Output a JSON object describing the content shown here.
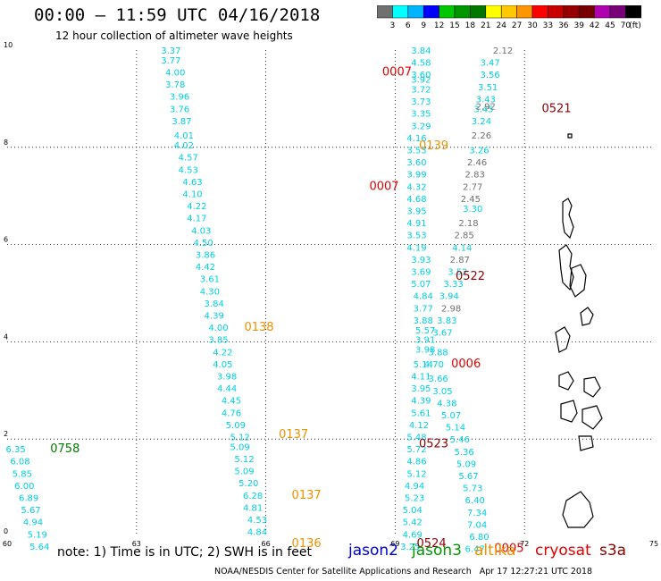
{
  "header": {
    "title": "00:00 – 11:59 UTC 04/16/2018",
    "subtitle": "12 hour collection of altimeter wave heights"
  },
  "colorbar": {
    "colors": [
      "#707070",
      "#00ffff",
      "#00b4ff",
      "#0000ff",
      "#00c800",
      "#009600",
      "#007800",
      "#ffff00",
      "#ffc800",
      "#ff9600",
      "#ff0000",
      "#c80000",
      "#960000",
      "#780000",
      "#b000b0",
      "#780078",
      "#000000"
    ],
    "labels": [
      "3",
      "6",
      "9",
      "12",
      "15",
      "18",
      "21",
      "24",
      "27",
      "30",
      "33",
      "36",
      "39",
      "42",
      "45",
      "70"
    ],
    "unit": "(ft)"
  },
  "chart_data": {
    "type": "scatter",
    "xlim": [
      60,
      75
    ],
    "ylim": [
      0,
      10
    ],
    "xticks": [
      "60",
      "63",
      "66",
      "69",
      "72",
      "75"
    ],
    "yticks": [
      "0",
      "2",
      "4",
      "6",
      "8",
      "10"
    ],
    "grid": true,
    "series": [
      {
        "color": "#00d0e0",
        "points": [
          {
            "x": 63.8,
            "y": 10.0,
            "v": "3.37"
          },
          {
            "x": 63.8,
            "y": 9.8,
            "v": "3.77"
          },
          {
            "x": 63.9,
            "y": 9.55,
            "v": "4.00"
          },
          {
            "x": 63.9,
            "y": 9.3,
            "v": "3.78"
          },
          {
            "x": 64.0,
            "y": 9.05,
            "v": "3.96"
          },
          {
            "x": 64.0,
            "y": 8.8,
            "v": "3.76"
          },
          {
            "x": 64.05,
            "y": 8.55,
            "v": "3.87"
          },
          {
            "x": 64.1,
            "y": 8.25,
            "v": "4.01"
          },
          {
            "x": 64.1,
            "y": 8.05,
            "v": "4.02"
          },
          {
            "x": 64.2,
            "y": 7.8,
            "v": "4.57"
          },
          {
            "x": 64.2,
            "y": 7.55,
            "v": "4.53"
          },
          {
            "x": 64.3,
            "y": 7.3,
            "v": "4.63"
          },
          {
            "x": 64.3,
            "y": 7.05,
            "v": "4.10"
          },
          {
            "x": 64.4,
            "y": 6.8,
            "v": "4.22"
          },
          {
            "x": 64.4,
            "y": 6.55,
            "v": "4.17"
          },
          {
            "x": 64.5,
            "y": 6.3,
            "v": "4.03"
          },
          {
            "x": 64.55,
            "y": 6.05,
            "v": "4.50"
          },
          {
            "x": 64.6,
            "y": 5.8,
            "v": "3.86"
          },
          {
            "x": 64.6,
            "y": 5.55,
            "v": "4.42"
          },
          {
            "x": 64.7,
            "y": 5.3,
            "v": "3.61"
          },
          {
            "x": 64.7,
            "y": 5.05,
            "v": "4.30"
          },
          {
            "x": 64.8,
            "y": 4.8,
            "v": "3.84"
          },
          {
            "x": 64.8,
            "y": 4.55,
            "v": "4.39"
          },
          {
            "x": 64.9,
            "y": 4.3,
            "v": "4.00"
          },
          {
            "x": 64.9,
            "y": 4.05,
            "v": "3.85"
          },
          {
            "x": 65.0,
            "y": 3.8,
            "v": "4.22"
          },
          {
            "x": 65.0,
            "y": 3.55,
            "v": "4.05"
          },
          {
            "x": 65.1,
            "y": 3.3,
            "v": "3.98"
          },
          {
            "x": 65.1,
            "y": 3.05,
            "v": "4.44"
          },
          {
            "x": 65.2,
            "y": 2.8,
            "v": "4.45"
          },
          {
            "x": 65.2,
            "y": 2.55,
            "v": "4.76"
          },
          {
            "x": 65.3,
            "y": 2.3,
            "v": "5.09"
          },
          {
            "x": 65.4,
            "y": 2.05,
            "v": "5.12"
          },
          {
            "x": 65.4,
            "y": 1.85,
            "v": "5.09"
          },
          {
            "x": 65.5,
            "y": 1.6,
            "v": "5.12"
          },
          {
            "x": 65.5,
            "y": 1.35,
            "v": "5.09"
          },
          {
            "x": 65.6,
            "y": 1.1,
            "v": "5.20"
          },
          {
            "x": 65.7,
            "y": 0.85,
            "v": "6.28"
          },
          {
            "x": 65.7,
            "y": 0.6,
            "v": "4.81"
          },
          {
            "x": 65.8,
            "y": 0.35,
            "v": "4.53"
          },
          {
            "x": 65.8,
            "y": 0.1,
            "v": "4.84"
          },
          {
            "x": 60.2,
            "y": 1.8,
            "v": "6.35"
          },
          {
            "x": 60.3,
            "y": 1.55,
            "v": "6.08"
          },
          {
            "x": 60.35,
            "y": 1.3,
            "v": "5.85"
          },
          {
            "x": 60.4,
            "y": 1.05,
            "v": "6.00"
          },
          {
            "x": 60.5,
            "y": 0.8,
            "v": "6.89"
          },
          {
            "x": 60.55,
            "y": 0.55,
            "v": "5.67"
          },
          {
            "x": 60.6,
            "y": 0.3,
            "v": "4.94"
          },
          {
            "x": 60.7,
            "y": 0.05,
            "v": "5.19"
          },
          {
            "x": 60.75,
            "y": -0.2,
            "v": "5.64"
          },
          {
            "x": 69.6,
            "y": 10.0,
            "v": "3.84"
          },
          {
            "x": 69.6,
            "y": 9.75,
            "v": "4.58"
          },
          {
            "x": 69.6,
            "y": 9.5,
            "v": "3.60"
          },
          {
            "x": 69.6,
            "y": 9.4,
            "v": "3.92"
          },
          {
            "x": 69.6,
            "y": 9.2,
            "v": "3.72"
          },
          {
            "x": 69.6,
            "y": 8.95,
            "v": "3.73"
          },
          {
            "x": 69.6,
            "y": 8.7,
            "v": "3.35"
          },
          {
            "x": 69.6,
            "y": 8.45,
            "v": "3.29"
          },
          {
            "x": 69.5,
            "y": 8.2,
            "v": "4.16"
          },
          {
            "x": 69.5,
            "y": 7.95,
            "v": "3.53"
          },
          {
            "x": 69.5,
            "y": 7.7,
            "v": "3.60"
          },
          {
            "x": 69.5,
            "y": 7.45,
            "v": "3.99"
          },
          {
            "x": 69.5,
            "y": 7.2,
            "v": "4.32"
          },
          {
            "x": 69.5,
            "y": 6.95,
            "v": "4.68"
          },
          {
            "x": 69.5,
            "y": 6.7,
            "v": "3.95"
          },
          {
            "x": 69.5,
            "y": 6.45,
            "v": "4.91"
          },
          {
            "x": 69.5,
            "y": 6.2,
            "v": "3.53"
          },
          {
            "x": 69.5,
            "y": 5.95,
            "v": "4.19"
          },
          {
            "x": 69.6,
            "y": 5.7,
            "v": "3.93"
          },
          {
            "x": 69.6,
            "y": 5.45,
            "v": "3.69"
          },
          {
            "x": 69.6,
            "y": 5.2,
            "v": "5.07"
          },
          {
            "x": 69.65,
            "y": 4.95,
            "v": "4.84"
          },
          {
            "x": 69.65,
            "y": 4.7,
            "v": "3.77"
          },
          {
            "x": 69.65,
            "y": 4.45,
            "v": "3.88"
          },
          {
            "x": 69.7,
            "y": 4.25,
            "v": "5.57"
          },
          {
            "x": 69.7,
            "y": 4.05,
            "v": "3.91"
          },
          {
            "x": 69.7,
            "y": 3.85,
            "v": "3.98"
          },
          {
            "x": 69.65,
            "y": 3.55,
            "v": "5.14"
          },
          {
            "x": 69.6,
            "y": 3.3,
            "v": "4.11"
          },
          {
            "x": 69.6,
            "y": 3.05,
            "v": "3.95"
          },
          {
            "x": 69.6,
            "y": 2.8,
            "v": "4.39"
          },
          {
            "x": 69.6,
            "y": 2.55,
            "v": "5.61"
          },
          {
            "x": 69.55,
            "y": 2.3,
            "v": "4.12"
          },
          {
            "x": 69.5,
            "y": 2.05,
            "v": "5.48"
          },
          {
            "x": 69.5,
            "y": 1.8,
            "v": "5.72"
          },
          {
            "x": 69.5,
            "y": 1.55,
            "v": "4.86"
          },
          {
            "x": 69.5,
            "y": 1.3,
            "v": "5.12"
          },
          {
            "x": 69.45,
            "y": 1.05,
            "v": "4.94"
          },
          {
            "x": 69.45,
            "y": 0.8,
            "v": "5.23"
          },
          {
            "x": 69.4,
            "y": 0.55,
            "v": "5.04"
          },
          {
            "x": 69.4,
            "y": 0.3,
            "v": "5.42"
          },
          {
            "x": 69.4,
            "y": 0.05,
            "v": "4.69"
          },
          {
            "x": 69.35,
            "y": -0.2,
            "v": "3.25"
          },
          {
            "x": 71.2,
            "y": 9.75,
            "v": "3.47"
          },
          {
            "x": 71.2,
            "y": 9.5,
            "v": "3.56"
          },
          {
            "x": 71.15,
            "y": 9.25,
            "v": "3.51"
          },
          {
            "x": 71.1,
            "y": 9.0,
            "v": "3.43"
          },
          {
            "x": 71.05,
            "y": 8.8,
            "v": "3.45"
          },
          {
            "x": 71.0,
            "y": 8.55,
            "v": "3.24"
          },
          {
            "x": 70.95,
            "y": 7.95,
            "v": "3.26"
          },
          {
            "x": 70.8,
            "y": 6.75,
            "v": "3.30"
          },
          {
            "x": 70.55,
            "y": 5.95,
            "v": "4.14"
          },
          {
            "x": 70.45,
            "y": 5.45,
            "v": "3.52"
          },
          {
            "x": 70.35,
            "y": 5.2,
            "v": "3.33"
          },
          {
            "x": 70.25,
            "y": 4.95,
            "v": "3.94"
          },
          {
            "x": 70.2,
            "y": 4.45,
            "v": "3.83"
          },
          {
            "x": 70.1,
            "y": 4.2,
            "v": "3.67"
          },
          {
            "x": 70.0,
            "y": 3.8,
            "v": "3.88"
          },
          {
            "x": 69.9,
            "y": 3.55,
            "v": "4.70"
          },
          {
            "x": 70.0,
            "y": 3.25,
            "v": "3.66"
          },
          {
            "x": 70.1,
            "y": 3.0,
            "v": "3.05"
          },
          {
            "x": 70.2,
            "y": 2.75,
            "v": "4.38"
          },
          {
            "x": 70.3,
            "y": 2.5,
            "v": "5.07"
          },
          {
            "x": 70.4,
            "y": 2.25,
            "v": "5.14"
          },
          {
            "x": 70.5,
            "y": 2.0,
            "v": "5.46"
          },
          {
            "x": 70.6,
            "y": 1.75,
            "v": "5.36"
          },
          {
            "x": 70.65,
            "y": 1.5,
            "v": "5.09"
          },
          {
            "x": 70.7,
            "y": 1.25,
            "v": "5.67"
          },
          {
            "x": 70.8,
            "y": 1.0,
            "v": "5.73"
          },
          {
            "x": 70.85,
            "y": 0.75,
            "v": "6.40"
          },
          {
            "x": 70.9,
            "y": 0.5,
            "v": "7.34"
          },
          {
            "x": 70.9,
            "y": 0.25,
            "v": "7.04"
          },
          {
            "x": 70.95,
            "y": 0.0,
            "v": "6.80"
          },
          {
            "x": 70.85,
            "y": -0.25,
            "v": "6.47"
          }
        ]
      },
      {
        "color": "#707070",
        "points": [
          {
            "x": 71.5,
            "y": 10.0,
            "v": "2.12"
          },
          {
            "x": 71.1,
            "y": 8.85,
            "v": "2.92"
          },
          {
            "x": 71.0,
            "y": 8.25,
            "v": "2.26"
          },
          {
            "x": 70.9,
            "y": 7.7,
            "v": "2.46"
          },
          {
            "x": 70.85,
            "y": 7.45,
            "v": "2.83"
          },
          {
            "x": 70.8,
            "y": 7.2,
            "v": "2.77"
          },
          {
            "x": 70.75,
            "y": 6.95,
            "v": "2.45"
          },
          {
            "x": 70.7,
            "y": 6.45,
            "v": "2.18"
          },
          {
            "x": 70.6,
            "y": 6.2,
            "v": "2.85"
          },
          {
            "x": 70.5,
            "y": 5.7,
            "v": "2.87"
          },
          {
            "x": 70.3,
            "y": 4.7,
            "v": "2.98"
          }
        ]
      }
    ],
    "time_labels": [
      {
        "x": 68.7,
        "y": 9.55,
        "text": "0007",
        "color": "#e00000"
      },
      {
        "x": 72.4,
        "y": 8.8,
        "text": "0521",
        "color": "#900000"
      },
      {
        "x": 69.55,
        "y": 8.03,
        "text": "0139",
        "color": "#f09000"
      },
      {
        "x": 68.4,
        "y": 7.2,
        "text": "0007",
        "color": "#e00000"
      },
      {
        "x": 70.4,
        "y": 5.35,
        "text": "0522",
        "color": "#900000"
      },
      {
        "x": 65.5,
        "y": 4.3,
        "text": "0138",
        "color": "#f09000"
      },
      {
        "x": 70.3,
        "y": 3.55,
        "text": "0006",
        "color": "#e00000"
      },
      {
        "x": 66.3,
        "y": 2.1,
        "text": "0137",
        "color": "#f09000"
      },
      {
        "x": 61.0,
        "y": 1.8,
        "text": "0758",
        "color": "#007800"
      },
      {
        "x": 69.55,
        "y": 1.9,
        "text": "0523",
        "color": "#900000"
      },
      {
        "x": 66.6,
        "y": 0.85,
        "text": "0137",
        "color": "#f09000"
      },
      {
        "x": 66.6,
        "y": -0.15,
        "text": "0136",
        "color": "#f09000"
      },
      {
        "x": 69.5,
        "y": -0.15,
        "text": "0524",
        "color": "#900000"
      },
      {
        "x": 71.3,
        "y": -0.25,
        "text": "0005",
        "color": "#e00000"
      }
    ]
  },
  "footer": {
    "note": "note:  1) Time is in UTC;  2) SWH is in feet",
    "credit": "NOAA/NESDIS Center for Satellite Applications and Research",
    "timestamp": "Apr 17 12:27:21 UTC 2018"
  },
  "legend": [
    {
      "name": "jason2",
      "color": "#0000d0"
    },
    {
      "name": "jason3",
      "color": "#009600"
    },
    {
      "name": "altika",
      "color": "#f09000"
    },
    {
      "name": "cryosat",
      "color": "#e00000"
    },
    {
      "name": "s3a",
      "color": "#900000"
    }
  ]
}
